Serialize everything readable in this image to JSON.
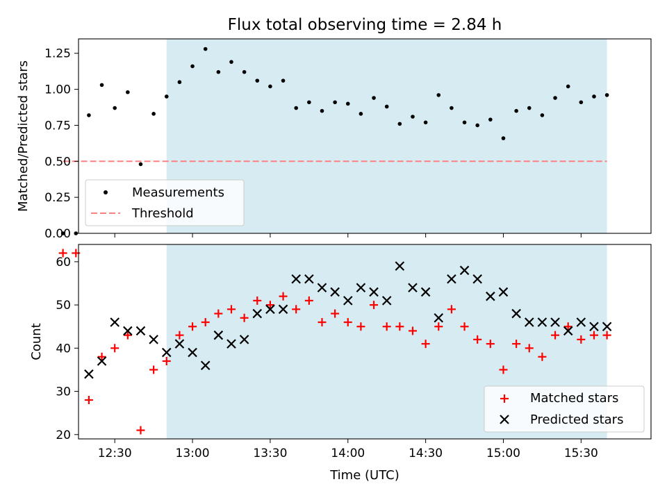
{
  "chart_data": [
    {
      "type": "scatter",
      "title": "Flux total observing time = 2.84 h",
      "xlabel": "",
      "ylabel": "Matched/Predicted stars",
      "ylim": [
        0,
        1.35
      ],
      "yticks": [
        "0.00",
        "0.25",
        "0.50",
        "0.75",
        "1.00",
        "1.25"
      ],
      "xlim": [
        "12:16",
        "15:57"
      ],
      "shaded_interval": [
        "12:50",
        "15:40"
      ],
      "shade_color": "#add8e6",
      "threshold": {
        "name": "Threshold",
        "value": 0.5,
        "x_range": [
          "12:10",
          "15:40"
        ],
        "color": "#ff8080",
        "style": "dashed"
      },
      "legend_position": "lower-left",
      "series": [
        {
          "name": "Measurements",
          "color": "#000000",
          "marker": "dot",
          "x": [
            "12:10",
            "12:15",
            "12:20",
            "12:25",
            "12:30",
            "12:35",
            "12:40",
            "12:45",
            "12:50",
            "12:55",
            "13:00",
            "13:05",
            "13:10",
            "13:15",
            "13:20",
            "13:25",
            "13:30",
            "13:35",
            "13:40",
            "13:45",
            "13:50",
            "13:55",
            "14:00",
            "14:05",
            "14:10",
            "14:15",
            "14:20",
            "14:25",
            "14:30",
            "14:35",
            "14:40",
            "14:45",
            "14:50",
            "14:55",
            "15:00",
            "15:05",
            "15:10",
            "15:15",
            "15:20",
            "15:25",
            "15:30",
            "15:35",
            "15:40"
          ],
          "y": [
            0.0,
            0.0,
            0.82,
            1.03,
            0.87,
            0.98,
            0.48,
            0.83,
            0.95,
            1.05,
            1.16,
            1.28,
            1.12,
            1.19,
            1.12,
            1.06,
            1.02,
            1.06,
            0.87,
            0.91,
            0.85,
            0.91,
            0.9,
            0.83,
            0.94,
            0.88,
            0.76,
            0.81,
            0.77,
            0.96,
            0.87,
            0.77,
            0.75,
            0.79,
            0.66,
            0.85,
            0.87,
            0.82,
            0.94,
            1.02,
            0.91,
            0.95,
            0.96
          ]
        }
      ]
    },
    {
      "type": "scatter",
      "xlabel": "Time (UTC)",
      "ylabel": "Count",
      "ylim": [
        19,
        64
      ],
      "yticks": [
        "20",
        "30",
        "40",
        "50",
        "60"
      ],
      "xlim": [
        "12:16",
        "15:57"
      ],
      "xticks": [
        "12:30",
        "13:00",
        "13:30",
        "14:00",
        "14:30",
        "15:00",
        "15:30"
      ],
      "shaded_interval": [
        "12:50",
        "15:40"
      ],
      "shade_color": "#add8e6",
      "legend_position": "lower-right",
      "series": [
        {
          "name": "Matched stars",
          "color": "#ff0000",
          "marker": "plus",
          "x": [
            "12:10",
            "12:15",
            "12:20",
            "12:25",
            "12:30",
            "12:35",
            "12:40",
            "12:45",
            "12:50",
            "12:55",
            "13:00",
            "13:05",
            "13:10",
            "13:15",
            "13:20",
            "13:25",
            "13:30",
            "13:35",
            "13:40",
            "13:45",
            "13:50",
            "13:55",
            "14:00",
            "14:05",
            "14:10",
            "14:15",
            "14:20",
            "14:25",
            "14:30",
            "14:35",
            "14:40",
            "14:45",
            "14:50",
            "14:55",
            "15:00",
            "15:05",
            "15:10",
            "15:15",
            "15:20",
            "15:25",
            "15:30",
            "15:35",
            "15:40"
          ],
          "y": [
            62,
            62,
            28,
            38,
            40,
            43,
            21,
            35,
            37,
            43,
            45,
            46,
            48,
            49,
            47,
            51,
            50,
            52,
            49,
            51,
            46,
            48,
            46,
            45,
            50,
            45,
            45,
            44,
            41,
            45,
            49,
            45,
            42,
            41,
            35,
            41,
            40,
            38,
            43,
            45,
            42,
            43,
            43
          ]
        },
        {
          "name": "Predicted stars",
          "color": "#000000",
          "marker": "cross",
          "x": [
            "12:20",
            "12:25",
            "12:30",
            "12:35",
            "12:40",
            "12:45",
            "12:50",
            "12:55",
            "13:00",
            "13:05",
            "13:10",
            "13:15",
            "13:20",
            "13:25",
            "13:30",
            "13:35",
            "13:40",
            "13:45",
            "13:50",
            "13:55",
            "14:00",
            "14:05",
            "14:10",
            "14:15",
            "14:20",
            "14:25",
            "14:30",
            "14:35",
            "14:40",
            "14:45",
            "14:50",
            "14:55",
            "15:00",
            "15:05",
            "15:10",
            "15:15",
            "15:20",
            "15:25",
            "15:30",
            "15:35",
            "15:40"
          ],
          "y": [
            34,
            37,
            46,
            44,
            44,
            42,
            39,
            41,
            39,
            36,
            43,
            41,
            42,
            48,
            49,
            49,
            56,
            56,
            54,
            53,
            51,
            54,
            53,
            51,
            59,
            54,
            53,
            47,
            56,
            58,
            56,
            52,
            53,
            48,
            46,
            46,
            46,
            44,
            46,
            45,
            45
          ]
        }
      ]
    }
  ]
}
